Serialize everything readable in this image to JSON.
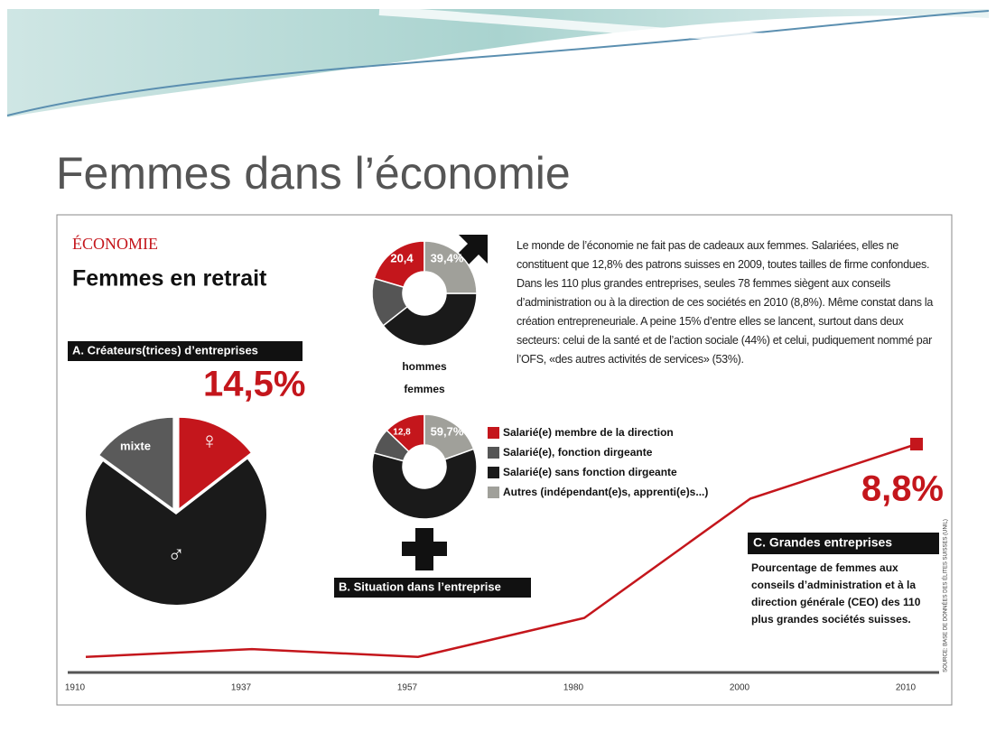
{
  "slide": {
    "title": "Femmes dans l’économie"
  },
  "chart_data": [
    {
      "type": "pie",
      "kicker": "ÉCONOMIE",
      "headline": "Femmes en retrait",
      "title": "A. Créateurs(trices) d’entreprises",
      "categories": [
        "♀",
        "♂",
        "mixte"
      ],
      "values": [
        14.5,
        70.5,
        15
      ],
      "value_labels": [
        "14,5%",
        null,
        null
      ],
      "colors": [
        "#c4161c",
        "#1a1a1a",
        "#5a5a5a"
      ]
    },
    {
      "type": "donut",
      "title": "B. Situation dans l’entreprise",
      "categories": [
        "Salarié(e) membre de la direction",
        "Salarié(e), fonction dirgeante",
        "Salarié(e) sans fonction dirgeante",
        "Autres (indépendant(e)s, apprenti(e)s...)"
      ],
      "colors": [
        "#c4161c",
        "#555555",
        "#1a1a1a",
        "#a0a09a"
      ],
      "series": [
        {
          "name": "hommes",
          "values": [
            20.4,
            15.2,
            39.4,
            25
          ],
          "value_labels": [
            "20,4",
            null,
            "39,4%",
            null
          ]
        },
        {
          "name": "femmes",
          "values": [
            12.8,
            8,
            59.7,
            19.5
          ],
          "value_labels": [
            "12,8",
            null,
            "59,7%",
            null
          ]
        }
      ]
    },
    {
      "type": "line",
      "title": "C. Grandes entreprises",
      "subtitle": "Pourcentage de femmes aux conseils d’administration et à la direction générale (CEO) des 110 plus grandes sociétés suisses.",
      "categories": [
        "1910",
        "1937",
        "1957",
        "1980",
        "2000",
        "2010"
      ],
      "values": [
        0.6,
        0.9,
        0.6,
        2.1,
        6.7,
        8.8
      ],
      "value_labels": [
        null,
        null,
        null,
        null,
        null,
        "8,8%"
      ],
      "color": "#c4161c"
    }
  ],
  "text": {
    "paragraph": "Le monde de l’économie ne fait pas de cadeaux aux femmes. Salariées, elles ne constituent que 12,8% des patrons suisses en 2009, toutes tailles de firme confondues. Dans les 110 plus grandes entreprises, seules 78 femmes siègent aux conseils d’administration ou à la direction de ces sociétés en 2010 (8,8%). Même constat dans la création entrepreneuriale. A peine 15% d’entre elles se lancent, surtout dans deux secteurs: celui de la santé et de l’action sociale (44%) et celui, pudiquement nommé par l’OFS, «des autres activités de services» (53%).",
    "source": "SOURCE: BASE DE DONNÉES DES ÉLITES SUISSES (UNIL)"
  }
}
